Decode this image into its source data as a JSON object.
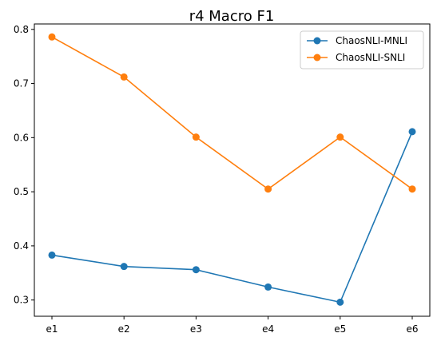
{
  "chart_data": {
    "type": "line",
    "title": "r4 Macro F1",
    "categories": [
      "e1",
      "e2",
      "e3",
      "e4",
      "e5",
      "e6"
    ],
    "series": [
      {
        "name": "ChaosNLI-MNLI",
        "color": "#1f77b4",
        "values": [
          0.383,
          0.362,
          0.356,
          0.324,
          0.296,
          0.611
        ]
      },
      {
        "name": "ChaosNLI-SNLI",
        "color": "#ff7f0e",
        "values": [
          0.786,
          0.712,
          0.601,
          0.505,
          0.601,
          0.505
        ]
      }
    ],
    "ylim": [
      0.27,
      0.81
    ],
    "yticks": [
      0.3,
      0.4,
      0.5,
      0.6,
      0.7,
      0.8
    ],
    "ytick_labels": [
      "0.3",
      "0.4",
      "0.5",
      "0.6",
      "0.7",
      "0.8"
    ],
    "grid": false,
    "legend_position": "top-right"
  }
}
